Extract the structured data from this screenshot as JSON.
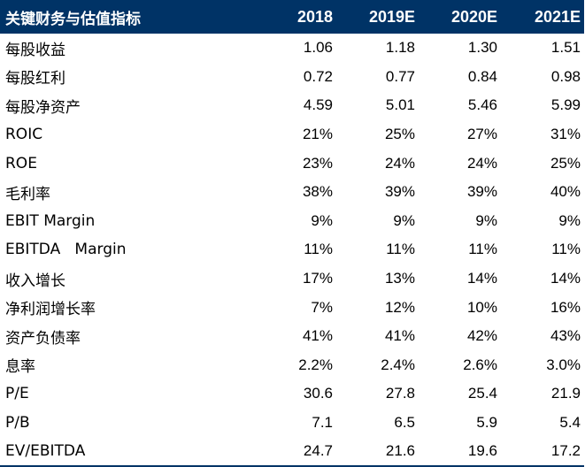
{
  "table": {
    "headers": [
      "关键财务与估值指标",
      "2018",
      "2019E",
      "2020E",
      "2021E"
    ],
    "rows": [
      {
        "label": "每股收益",
        "values": [
          "1.06",
          "1.18",
          "1.30",
          "1.51"
        ]
      },
      {
        "label": "每股红利",
        "values": [
          "0.72",
          "0.77",
          "0.84",
          "0.98"
        ]
      },
      {
        "label": "每股净资产",
        "values": [
          "4.59",
          "5.01",
          "5.46",
          "5.99"
        ]
      },
      {
        "label": "ROIC",
        "values": [
          "21%",
          "25%",
          "27%",
          "31%"
        ]
      },
      {
        "label": "ROE",
        "values": [
          "23%",
          "24%",
          "24%",
          "25%"
        ]
      },
      {
        "label": "毛利率",
        "values": [
          "38%",
          "39%",
          "39%",
          "40%"
        ]
      },
      {
        "label": "EBIT Margin",
        "values": [
          "9%",
          "9%",
          "9%",
          "9%"
        ]
      },
      {
        "label": "EBITDA   Margin",
        "values": [
          "11%",
          "11%",
          "11%",
          "11%"
        ]
      },
      {
        "label": "收入增长",
        "values": [
          "17%",
          "13%",
          "14%",
          "14%"
        ]
      },
      {
        "label": "净利润增长率",
        "values": [
          "7%",
          "12%",
          "10%",
          "16%"
        ]
      },
      {
        "label": "资产负债率",
        "values": [
          "41%",
          "41%",
          "42%",
          "43%"
        ]
      },
      {
        "label": "息率",
        "values": [
          "2.2%",
          "2.4%",
          "2.6%",
          "3.0%"
        ]
      },
      {
        "label": "P/E",
        "values": [
          "30.6",
          "27.8",
          "25.4",
          "21.9"
        ]
      },
      {
        "label": "P/B",
        "values": [
          "7.1",
          "6.5",
          "5.9",
          "5.4"
        ]
      },
      {
        "label": "EV/EBITDA",
        "values": [
          "24.7",
          "21.6",
          "19.6",
          "17.2"
        ]
      }
    ]
  },
  "colors": {
    "header_bg": "#003366",
    "header_text": "#ffffff"
  }
}
